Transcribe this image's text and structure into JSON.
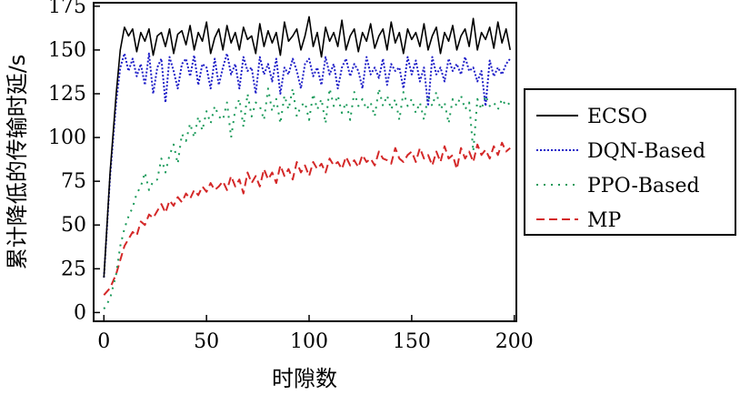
{
  "chart_data": {
    "type": "line",
    "xlabel": "时隙数",
    "ylabel": "累计降低的传输时延/s",
    "xlim": [
      -5,
      201
    ],
    "ylim": [
      -5,
      177
    ],
    "xticks": [
      0,
      50,
      100,
      150,
      200
    ],
    "yticks": [
      0,
      25,
      50,
      75,
      100,
      125,
      150,
      175
    ],
    "grid": false,
    "legend_position": "outside-right",
    "series": [
      {
        "name": "ECSO",
        "color": "#000000",
        "dash": "solid",
        "x": [
          0,
          3,
          6,
          8,
          10,
          12,
          14,
          16,
          18,
          20,
          22,
          24,
          26,
          28,
          30,
          32,
          34,
          36,
          38,
          40,
          42,
          44,
          46,
          48,
          50,
          52,
          54,
          56,
          58,
          60,
          62,
          64,
          66,
          68,
          70,
          72,
          74,
          76,
          78,
          80,
          82,
          84,
          86,
          88,
          90,
          92,
          94,
          96,
          98,
          100,
          102,
          104,
          106,
          108,
          110,
          112,
          114,
          116,
          118,
          120,
          122,
          124,
          126,
          128,
          130,
          132,
          134,
          136,
          138,
          140,
          142,
          144,
          146,
          148,
          150,
          152,
          154,
          156,
          158,
          160,
          162,
          164,
          166,
          168,
          170,
          172,
          174,
          176,
          178,
          180,
          182,
          184,
          186,
          188,
          190,
          192,
          194,
          196,
          198
        ],
        "y": [
          20,
          80,
          125,
          150,
          163,
          158,
          162,
          149,
          160,
          155,
          162,
          147,
          158,
          160,
          152,
          162,
          148,
          159,
          161,
          153,
          164,
          150,
          160,
          155,
          166,
          148,
          157,
          162,
          150,
          164,
          154,
          160,
          150,
          163,
          156,
          158,
          148,
          165,
          152,
          161,
          154,
          160,
          147,
          166,
          155,
          158,
          162,
          150,
          158,
          169,
          152,
          160,
          146,
          163,
          155,
          160,
          152,
          167,
          150,
          158,
          162,
          149,
          160,
          155,
          165,
          151,
          158,
          162,
          150,
          166,
          154,
          160,
          148,
          162,
          156,
          160,
          152,
          165,
          150,
          158,
          163,
          148,
          160,
          155,
          164,
          150,
          158,
          162,
          152,
          168,
          150,
          160,
          156,
          163,
          151,
          166,
          154,
          162,
          150
        ]
      },
      {
        "name": "DQN-Based",
        "color": "#1f1fc8",
        "dash": "dotted",
        "x": [
          0,
          3,
          6,
          8,
          10,
          12,
          14,
          16,
          18,
          20,
          22,
          24,
          26,
          28,
          30,
          32,
          34,
          36,
          38,
          40,
          42,
          44,
          46,
          48,
          50,
          52,
          54,
          56,
          58,
          60,
          62,
          64,
          66,
          68,
          70,
          72,
          74,
          76,
          78,
          80,
          82,
          84,
          86,
          88,
          90,
          92,
          94,
          96,
          98,
          100,
          102,
          104,
          106,
          108,
          110,
          112,
          114,
          116,
          118,
          120,
          122,
          124,
          126,
          128,
          130,
          132,
          134,
          136,
          138,
          140,
          142,
          144,
          146,
          148,
          150,
          152,
          154,
          156,
          158,
          160,
          162,
          164,
          166,
          168,
          170,
          172,
          174,
          176,
          178,
          180,
          182,
          184,
          186,
          188,
          190,
          192,
          194,
          196,
          198
        ],
        "y": [
          20,
          78,
          120,
          140,
          148,
          138,
          145,
          135,
          142,
          130,
          148,
          125,
          140,
          145,
          120,
          146,
          138,
          128,
          142,
          145,
          135,
          147,
          130,
          142,
          140,
          128,
          145,
          130,
          140,
          148,
          136,
          142,
          128,
          146,
          138,
          140,
          125,
          146,
          136,
          142,
          132,
          145,
          125,
          140,
          136,
          145,
          138,
          128,
          142,
          145,
          135,
          140,
          130,
          146,
          136,
          142,
          128,
          140,
          145,
          135,
          142,
          138,
          128,
          146,
          136,
          140,
          134,
          145,
          130,
          142,
          138,
          140,
          128,
          146,
          136,
          144,
          132,
          140,
          118,
          146,
          136,
          140,
          132,
          145,
          138,
          142,
          136,
          146,
          138,
          140,
          132,
          138,
          118,
          144,
          135,
          140,
          136,
          142,
          145
        ]
      },
      {
        "name": "PPO-Based",
        "color": "#1a9a5a",
        "dash": "dashdot",
        "x": [
          0,
          3,
          6,
          8,
          10,
          12,
          14,
          16,
          18,
          20,
          22,
          24,
          26,
          28,
          30,
          32,
          34,
          36,
          38,
          40,
          42,
          44,
          46,
          48,
          50,
          52,
          54,
          56,
          58,
          60,
          62,
          64,
          66,
          68,
          70,
          72,
          74,
          76,
          78,
          80,
          82,
          84,
          86,
          88,
          90,
          92,
          94,
          96,
          98,
          100,
          102,
          104,
          106,
          108,
          110,
          112,
          114,
          116,
          118,
          120,
          122,
          124,
          126,
          128,
          130,
          132,
          134,
          136,
          138,
          140,
          142,
          144,
          146,
          148,
          150,
          152,
          154,
          156,
          158,
          160,
          162,
          164,
          166,
          168,
          170,
          172,
          174,
          176,
          178,
          180,
          182,
          184,
          186,
          188,
          190,
          192,
          194,
          196,
          198
        ],
        "y": [
          2,
          8,
          22,
          38,
          48,
          55,
          60,
          68,
          72,
          80,
          70,
          75,
          76,
          88,
          80,
          90,
          96,
          85,
          102,
          98,
          108,
          100,
          112,
          104,
          115,
          108,
          118,
          112,
          110,
          120,
          100,
          116,
          122,
          106,
          125,
          112,
          120,
          118,
          110,
          128,
          115,
          122,
          108,
          124,
          116,
          128,
          112,
          118,
          120,
          110,
          125,
          116,
          122,
          108,
          128,
          118,
          124,
          114,
          120,
          110,
          126,
          118,
          122,
          116,
          120,
          112,
          128,
          118,
          124,
          116,
          122,
          110,
          126,
          118,
          122,
          114,
          120,
          110,
          124,
          118,
          126,
          116,
          120,
          108,
          122,
          118,
          124,
          116,
          120,
          92,
          122,
          116,
          124,
          118,
          120,
          116,
          122,
          118,
          120
        ]
      },
      {
        "name": "MP",
        "color": "#d42828",
        "dash": "dashed",
        "x": [
          0,
          3,
          6,
          8,
          10,
          12,
          14,
          16,
          18,
          20,
          22,
          24,
          26,
          28,
          30,
          32,
          34,
          36,
          38,
          40,
          42,
          44,
          46,
          48,
          50,
          52,
          54,
          56,
          58,
          60,
          62,
          64,
          66,
          68,
          70,
          72,
          74,
          76,
          78,
          80,
          82,
          84,
          86,
          88,
          90,
          92,
          94,
          96,
          98,
          100,
          102,
          104,
          106,
          108,
          110,
          112,
          114,
          116,
          118,
          120,
          122,
          124,
          126,
          128,
          130,
          132,
          134,
          136,
          138,
          140,
          142,
          144,
          146,
          148,
          150,
          152,
          154,
          156,
          158,
          160,
          162,
          164,
          166,
          168,
          170,
          172,
          174,
          176,
          178,
          180,
          182,
          184,
          186,
          188,
          190,
          192,
          194,
          196,
          198
        ],
        "y": [
          10,
          14,
          22,
          30,
          38,
          42,
          46,
          44,
          52,
          50,
          56,
          54,
          58,
          62,
          57,
          64,
          61,
          66,
          63,
          68,
          65,
          70,
          67,
          72,
          69,
          74,
          70,
          72,
          75,
          70,
          78,
          72,
          76,
          68,
          80,
          74,
          78,
          72,
          82,
          76,
          80,
          74,
          84,
          78,
          82,
          76,
          86,
          80,
          84,
          78,
          86,
          82,
          85,
          80,
          88,
          84,
          86,
          82,
          89,
          84,
          87,
          83,
          90,
          86,
          88,
          84,
          92,
          88,
          87,
          85,
          94,
          88,
          86,
          90,
          92,
          86,
          94,
          88,
          90,
          84,
          92,
          86,
          95,
          88,
          90,
          82,
          94,
          88,
          92,
          86,
          96,
          90,
          93,
          88,
          95,
          90,
          97,
          92,
          94
        ]
      }
    ]
  }
}
